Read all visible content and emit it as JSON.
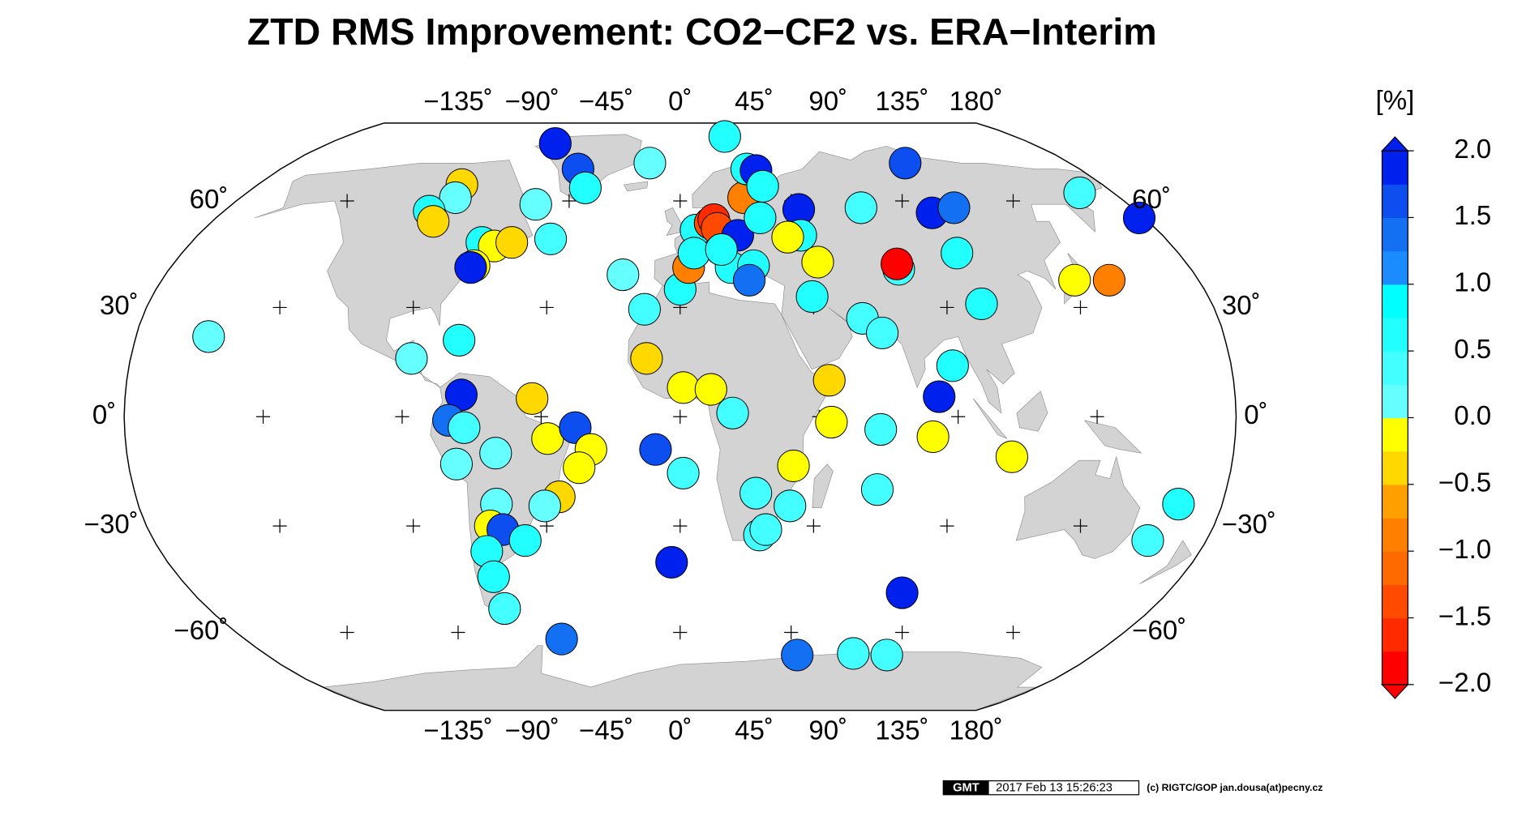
{
  "chart_data": {
    "type": "map",
    "title": "ZTD RMS Improvement:  CO2−CF2 vs. ERA−Interim",
    "projection": "robinson",
    "land_color": "#d3d3d3",
    "xticks": [
      {
        "value": -135,
        "label": "−135˚"
      },
      {
        "value": -90,
        "label": "−90˚"
      },
      {
        "value": -45,
        "label": "−45˚"
      },
      {
        "value": 0,
        "label": "0˚"
      },
      {
        "value": 45,
        "label": "45˚"
      },
      {
        "value": 90,
        "label": "90˚"
      },
      {
        "value": 135,
        "label": "135˚"
      },
      {
        "value": 180,
        "label": "180˚"
      }
    ],
    "yticks": [
      {
        "value": 60,
        "label": "60˚"
      },
      {
        "value": 30,
        "label": "30˚"
      },
      {
        "value": 0,
        "label": "0˚"
      },
      {
        "value": -30,
        "label": "−30˚"
      },
      {
        "value": -60,
        "label": "−60˚"
      }
    ],
    "stations": {
      "lon": [
        -156,
        -64,
        -46,
        -40,
        -14,
        24,
        -93,
        -92,
        -99,
        -95,
        -58,
        -48,
        -73,
        -68,
        -62,
        -73,
        -74,
        -88,
        -73,
        -71,
        -75,
        -70,
        -73,
        -60,
        -48,
        -43,
        -34,
        -29,
        -33,
        -40,
        -45,
        -61,
        -64,
        -60,
        -53,
        -67,
        -67,
        -67,
        -49,
        -20,
        -12,
        -11,
        -8,
        -3,
        1,
        1,
        10,
        17,
        0,
        3,
        6,
        11.5,
        13,
        14,
        21.5,
        26,
        30,
        34,
        35,
        31,
        47,
        45,
        40,
        18,
        26,
        24,
        49,
        45,
        72,
        99,
        109,
        100,
        104,
        77,
        77,
        102,
        61,
        67,
        48.5,
        49,
        65,
        65,
        89,
        84,
        82,
        108,
        137,
        149,
        166,
        178,
        165.5,
        160,
        82,
        37,
        25,
        36.5,
        27,
        29,
        51,
        75,
        90,
        5,
        15
      ],
      "lat": [
        22,
        79,
        70,
        64,
        72,
        82,
        65,
        61,
        57,
        54,
        59,
        49,
        48,
        47,
        48,
        41.5,
        41,
        16,
        21,
        6,
        -1,
        -3,
        -13,
        -10,
        5,
        -6,
        -3,
        -9,
        -14,
        -22,
        -24.5,
        -24,
        -30,
        -31,
        -34,
        -37,
        -44,
        -53,
        -62,
        39,
        29.5,
        16,
        -9,
        -40,
        -15.5,
        8,
        7.5,
        1,
        35,
        41,
        51.5,
        53.5,
        54.5,
        52,
        50,
        61,
        70,
        69.5,
        64.5,
        55,
        57.5,
        50,
        49.5,
        41,
        41.5,
        37.5,
        42.5,
        33,
        58,
        56.5,
        58,
        45,
        72,
        40.5,
        42,
        31,
        27,
        23,
        10,
        -1.5,
        -3.5,
        -20,
        14,
        5.5,
        -5.5,
        -11,
        37.5,
        37.5,
        62.5,
        55,
        -24,
        -34,
        -48.5,
        -13.5,
        -21,
        -24.5,
        -32.5,
        -31,
        -67,
        -66.5,
        -67,
        45,
        46
      ],
      "values": [
        0.2,
        1.9,
        1.5,
        0.6,
        0.2,
        0.5,
        -0.3,
        0.2,
        0.5,
        -0.3,
        0.2,
        0.3,
        0.5,
        -0.1,
        -0.3,
        -0.1,
        1.9,
        0.2,
        0.5,
        1.9,
        1.3,
        0.3,
        0.2,
        0.2,
        -0.3,
        -0.1,
        1.5,
        -0.2,
        -0.2,
        -0.3,
        0.2,
        0.2,
        -0.1,
        1.5,
        0.5,
        0.5,
        0.5,
        0.3,
        1.3,
        0.2,
        0.3,
        -0.3,
        1.5,
        1.9,
        0.3,
        -0.1,
        -0.1,
        0.3,
        0.6,
        -1.0,
        0.6,
        -1.4,
        -1.6,
        -1.4,
        1.9,
        -0.8,
        0.5,
        1.9,
        0.5,
        0.5,
        1.9,
        0.5,
        -0.1,
        0.5,
        0.5,
        1.3,
        -0.1,
        0.5,
        0.3,
        1.9,
        1.3,
        0.6,
        1.5,
        0.3,
        -1.9,
        0.6,
        0.3,
        0.3,
        -0.3,
        -0.1,
        0.3,
        0.3,
        0.5,
        1.9,
        -0.1,
        -0.1,
        -0.1,
        -0.8,
        0.3,
        1.9,
        0.6,
        0.3,
        1.9,
        -0.2,
        0.3,
        0.3,
        0.3,
        0.3,
        1.3,
        0.3,
        0.3,
        0.5,
        0.5
      ]
    },
    "colorbar": {
      "label": "[%]",
      "lim": [
        -2,
        2
      ],
      "ticks": [
        {
          "value": 2,
          "label": "2.0"
        },
        {
          "value": 1.5,
          "label": "1.5"
        },
        {
          "value": 1,
          "label": "1.0"
        },
        {
          "value": 0.5,
          "label": "0.5"
        },
        {
          "value": 0,
          "label": "0.0"
        },
        {
          "value": -0.5,
          "label": "−0.5"
        },
        {
          "value": -1,
          "label": "−1.0"
        },
        {
          "value": -1.5,
          "label": "−1.5"
        },
        {
          "value": -2,
          "label": "−2.0"
        }
      ],
      "colors": [
        "#ff0000",
        "#ff2a00",
        "#ff4a00",
        "#ff6a00",
        "#ff8000",
        "#ffa000",
        "#ffd800",
        "#ffff00",
        "#66ffff",
        "#44ffff",
        "#22ffff",
        "#00ffff",
        "#1a8cff",
        "#1470f2",
        "#0c4ef0",
        "#0020ee"
      ]
    }
  },
  "footer": {
    "logo": "GMT",
    "timestamp": "2017 Feb 13 15:26:23",
    "credit": "(c) RIGTC/GOP jan.dousa(at)pecny.cz"
  }
}
